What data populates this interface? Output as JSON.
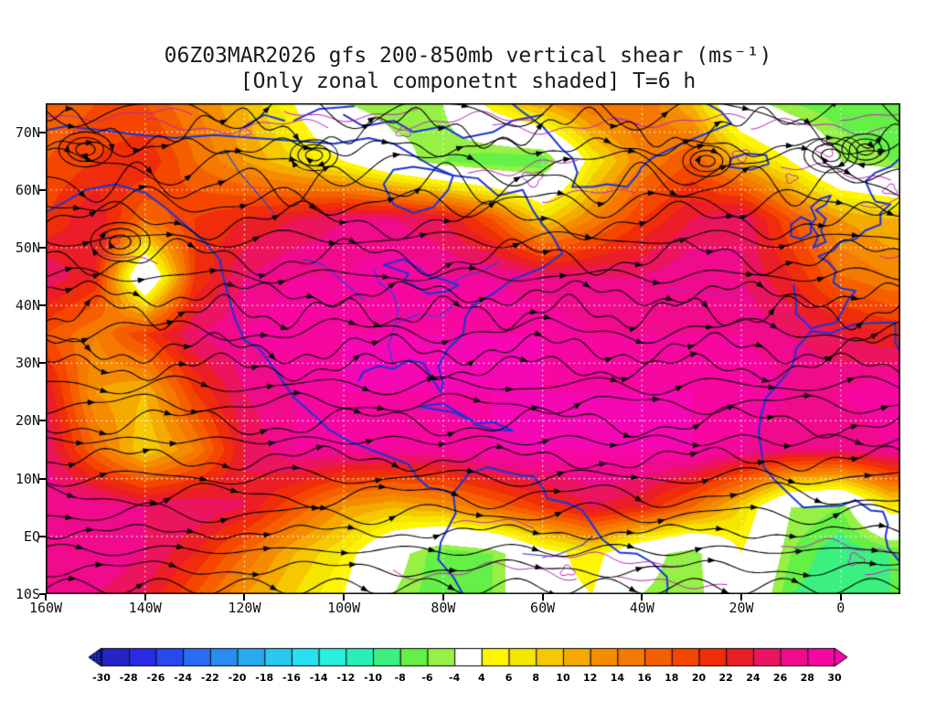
{
  "title": {
    "line1": "06Z03MAR2026 gfs 200-850mb vertical shear (ms⁻¹)",
    "line2": "[Only zonal componetnt shaded] T=6 h"
  },
  "axes": {
    "y_ticks": [
      {
        "label": "70N",
        "lat": 70
      },
      {
        "label": "60N",
        "lat": 60
      },
      {
        "label": "50N",
        "lat": 50
      },
      {
        "label": "40N",
        "lat": 40
      },
      {
        "label": "30N",
        "lat": 30
      },
      {
        "label": "20N",
        "lat": 20
      },
      {
        "label": "10N",
        "lat": 10
      },
      {
        "label": "EQ",
        "lat": 0
      },
      {
        "label": "10S",
        "lat": -10
      }
    ],
    "x_ticks": [
      {
        "label": "160W",
        "lon": -160
      },
      {
        "label": "140W",
        "lon": -140
      },
      {
        "label": "120W",
        "lon": -120
      },
      {
        "label": "100W",
        "lon": -100
      },
      {
        "label": "80W",
        "lon": -80
      },
      {
        "label": "60W",
        "lon": -60
      },
      {
        "label": "40W",
        "lon": -40
      },
      {
        "label": "20W",
        "lon": -20
      },
      {
        "label": "0",
        "lon": 0
      }
    ]
  },
  "colors": {
    "coastline": "#1b35d6",
    "river": "#2244dd",
    "streamline": "#000000",
    "contour": "#bb22bb",
    "gridline": "#ffffff",
    "frame": "#000000"
  },
  "chart_data": {
    "type": "heatmap",
    "title": "06Z03MAR2026 gfs 200-850mb vertical shear (ms⁻¹)",
    "subtitle": "[Only zonal componetnt shaded] T=6 h",
    "units": "ms⁻¹",
    "forecast_hour": "T=6 h",
    "lon_range": [
      -160,
      12
    ],
    "lat_range": [
      -10,
      75
    ],
    "grid_on": true,
    "legend_position": "bottom-colorbar",
    "colorbar": {
      "levels": [
        -30,
        -28,
        -26,
        -24,
        -22,
        -20,
        -18,
        -16,
        -14,
        -12,
        -10,
        -8,
        -6,
        -4,
        4,
        6,
        8,
        10,
        12,
        14,
        16,
        18,
        20,
        22,
        24,
        26,
        28,
        30
      ],
      "labels": [
        "-30",
        "-28",
        "-26",
        "-24",
        "-22",
        "-20",
        "-18",
        "-16",
        "-14",
        "-12",
        "-10",
        "-8",
        "-6",
        "-4",
        "4",
        "6",
        "8",
        "10",
        "12",
        "14",
        "16",
        "18",
        "20",
        "22",
        "24",
        "26",
        "28",
        "30"
      ],
      "colors": [
        "#2424c8",
        "#2a2ae6",
        "#2848f0",
        "#2a6cf5",
        "#2a8cf0",
        "#28aaf0",
        "#28c8f0",
        "#28e0f0",
        "#28f0dc",
        "#28f0b4",
        "#3cf080",
        "#64f046",
        "#96f046",
        "#ffffff",
        "#fff500",
        "#f5e600",
        "#f5c800",
        "#f5aa00",
        "#f58c00",
        "#f57800",
        "#f55f00",
        "#f54600",
        "#f02d0a",
        "#eb1e28",
        "#eb145f",
        "#f00a8c",
        "#f507a0"
      ],
      "arrow_low_color": "#101090",
      "arrow_high_color": "#f507b4"
    },
    "grid": {
      "comment": "Estimated zonal shear values (ms-1) read from shading on a coarse lon/lat grid; rows ordered north to south.",
      "lons": [
        -160,
        -150,
        -140,
        -130,
        -120,
        -110,
        -100,
        -90,
        -80,
        -70,
        -60,
        -50,
        -40,
        -30,
        -20,
        -10,
        0,
        10
      ],
      "lats": [
        75,
        65,
        55,
        45,
        35,
        25,
        15,
        5,
        -3,
        -10
      ],
      "values": [
        [
          16,
          18,
          18,
          14,
          10,
          4,
          -4,
          -6,
          -4,
          6,
          12,
          16,
          16,
          10,
          -2,
          -6,
          -8,
          -8
        ],
        [
          18,
          20,
          22,
          16,
          12,
          8,
          4,
          -2,
          -6,
          -8,
          -8,
          6,
          14,
          18,
          10,
          4,
          -4,
          -6
        ],
        [
          20,
          24,
          16,
          20,
          22,
          24,
          26,
          26,
          24,
          18,
          8,
          14,
          20,
          24,
          26,
          18,
          12,
          10
        ],
        [
          26,
          22,
          -4,
          20,
          26,
          28,
          28,
          30,
          28,
          28,
          26,
          26,
          26,
          28,
          26,
          22,
          16,
          14
        ],
        [
          18,
          14,
          20,
          26,
          28,
          30,
          30,
          30,
          30,
          30,
          30,
          28,
          28,
          28,
          28,
          26,
          24,
          22
        ],
        [
          24,
          12,
          10,
          20,
          26,
          28,
          30,
          30,
          30,
          30,
          30,
          30,
          30,
          30,
          30,
          28,
          28,
          30
        ],
        [
          26,
          16,
          8,
          14,
          24,
          28,
          28,
          28,
          28,
          30,
          30,
          30,
          30,
          30,
          28,
          26,
          26,
          28
        ],
        [
          28,
          28,
          26,
          26,
          24,
          18,
          12,
          10,
          12,
          16,
          20,
          24,
          22,
          16,
          8,
          -4,
          -6,
          6
        ],
        [
          26,
          28,
          26,
          22,
          16,
          10,
          6,
          -2,
          -8,
          -6,
          2,
          6,
          -2,
          -6,
          4,
          -6,
          -10,
          -8
        ],
        [
          26,
          26,
          24,
          18,
          12,
          8,
          4,
          -4,
          -8,
          -6,
          2,
          4,
          -4,
          -6,
          2,
          -8,
          -10,
          -8
        ]
      ]
    },
    "overlays": {
      "streamlines": "black wind-shear streamlines with arrowheads, mostly westerly flow with closed eddies",
      "coastlines": "blue map coastlines (North/Central/South America, Greenland, Europe, NW Africa)",
      "contours": "thin magenta contour squiggles in weak-shear regions",
      "gridlines": "white dotted lat/lon gridlines every 10 deg lat / 20 deg lon"
    }
  }
}
